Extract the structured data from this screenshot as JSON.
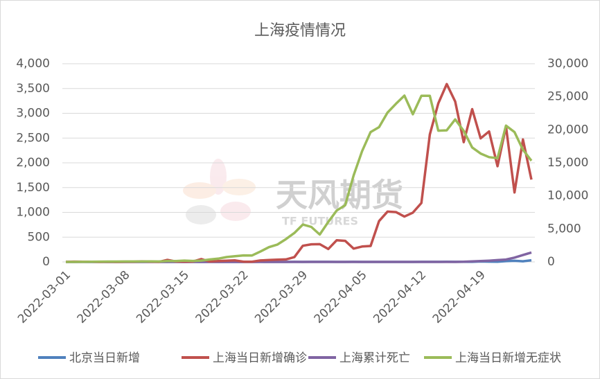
{
  "chart_data": {
    "type": "line",
    "title": "上海疫情情况",
    "watermark": [
      "天风期货",
      "TF FUTURES"
    ],
    "categories": [
      "2022-03-01",
      null,
      null,
      null,
      null,
      null,
      null,
      "2022-03-08",
      null,
      null,
      null,
      null,
      null,
      null,
      "2022-03-15",
      null,
      null,
      null,
      null,
      null,
      null,
      "2022-03-22",
      null,
      null,
      null,
      null,
      null,
      null,
      "2022-03-29",
      null,
      null,
      null,
      null,
      null,
      null,
      "2022-04-05",
      null,
      null,
      null,
      null,
      null,
      null,
      "2022-04-12",
      null,
      null,
      null,
      null,
      null,
      null,
      "2022-04-19",
      null,
      null,
      null,
      null,
      null,
      null
    ],
    "ylim": [
      0,
      4000
    ],
    "yticks": [
      0,
      500,
      {
        "value": 1000,
        "label": "1,000"
      },
      {
        "value": 1500,
        "label": "1,500"
      },
      {
        "value": 2000,
        "label": "2,000"
      },
      {
        "value": 2500,
        "label": "2,500"
      },
      {
        "value": 3000,
        "label": "3,000"
      },
      {
        "value": 3500,
        "label": "3,500"
      },
      {
        "value": 4000,
        "label": "4,000"
      }
    ],
    "y2lim": [
      0,
      30000
    ],
    "y2ticks": [
      0,
      {
        "value": 5000,
        "label": "5,000"
      },
      {
        "value": 10000,
        "label": "10,000"
      },
      {
        "value": 15000,
        "label": "15,000"
      },
      {
        "value": 20000,
        "label": "20,000"
      },
      {
        "value": 25000,
        "label": "25,000"
      },
      {
        "value": 30000,
        "label": "30,000"
      }
    ],
    "grid": true,
    "legend": "bottom",
    "series": [
      {
        "name": "北京当日新增",
        "color": "#4f81bd",
        "values": [
          0,
          0,
          1,
          0,
          1,
          0,
          0,
          0,
          0,
          0,
          1,
          1,
          0,
          1,
          0,
          2,
          0,
          1,
          0,
          0,
          0,
          0,
          0,
          1,
          0,
          0,
          0,
          1,
          0,
          2,
          1,
          2,
          0,
          0,
          1,
          0,
          0,
          0,
          0,
          0,
          0,
          0,
          1,
          2,
          1,
          3,
          1,
          2,
          2,
          9,
          6,
          3,
          15,
          22,
          12,
          33
        ]
      },
      {
        "name": "上海当日新增确诊",
        "color": "#c0504d",
        "values": [
          2,
          5,
          3,
          3,
          0,
          3,
          0,
          3,
          4,
          11,
          5,
          1,
          41,
          9,
          5,
          8,
          57,
          8,
          17,
          24,
          31,
          4,
          4,
          29,
          38,
          45,
          50,
          96,
          326,
          355,
          358,
          260,
          438,
          425,
          268,
          311,
          322,
          824,
          1015,
          1006,
          914,
          994,
          1189,
          2573,
          3200,
          3590,
          3238,
          2417,
          3084,
          2494,
          2634,
          1931,
          2736,
          1401,
          2472,
          1661
        ]
      },
      {
        "name": "上海累计死亡",
        "color": "#8064a2",
        "values": [
          0,
          0,
          0,
          0,
          0,
          0,
          0,
          0,
          0,
          0,
          0,
          0,
          0,
          0,
          0,
          0,
          0,
          0,
          0,
          0,
          0,
          0,
          0,
          0,
          0,
          0,
          0,
          0,
          0,
          0,
          0,
          0,
          0,
          0,
          0,
          0,
          0,
          0,
          0,
          0,
          0,
          0,
          0,
          0,
          0,
          0,
          0,
          3,
          10,
          17,
          25,
          36,
          48,
          87,
          138,
          190
        ]
      },
      {
        "name": "上海当日新增无症状",
        "color": "#9bbb59",
        "axis": "y2",
        "values": [
          0,
          2,
          14,
          16,
          45,
          50,
          55,
          62,
          58,
          64,
          78,
          64,
          128,
          130,
          197,
          150,
          203,
          366,
          492,
          734,
          865,
          981,
          979,
          1580,
          2231,
          2631,
          3450,
          4381,
          5656,
          5298,
          4144,
          6051,
          7788,
          8581,
          13086,
          16766,
          19660,
          20398,
          22609,
          23937,
          25173,
          22348,
          25141,
          25146,
          19872,
          19923,
          21582,
          19831,
          17332,
          16407,
          15861,
          15698,
          20634,
          19657,
          16983,
          15319
        ]
      }
    ]
  }
}
